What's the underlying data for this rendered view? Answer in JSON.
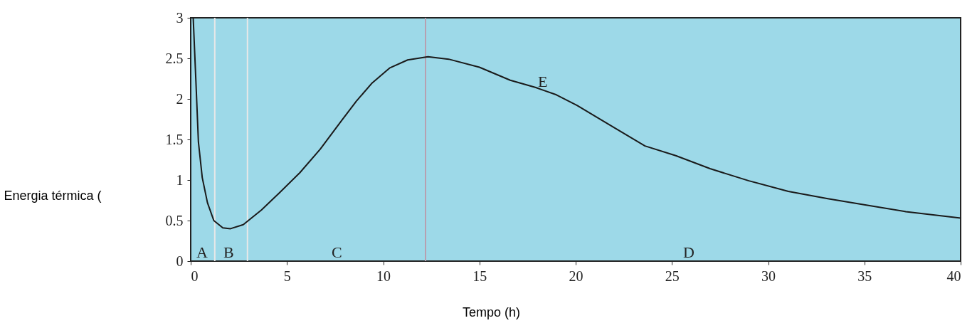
{
  "chart_data": {
    "type": "line",
    "xlabel": "Tempo (h)",
    "ylabel": "Energia térmica (",
    "xlim": [
      0,
      40
    ],
    "xticks": [
      0,
      5,
      10,
      15,
      20,
      25,
      30,
      35,
      40
    ],
    "ylim": [
      0,
      3
    ],
    "yticks": [
      0,
      0.5,
      1,
      1.5,
      2,
      2.5,
      3
    ],
    "grid": false,
    "marker": "none",
    "line_style": "solid",
    "series": [
      {
        "color": "#1a1a1a",
        "x": [
          0.13,
          0.27,
          0.4,
          0.6,
          0.87,
          1.2,
          1.67,
          2.07,
          2.73,
          3.67,
          4.6,
          5.67,
          6.73,
          7.8,
          8.6,
          9.4,
          10.33,
          11.27,
          12.33,
          13.4,
          15,
          16.6,
          17.93,
          19,
          20.07,
          21.97,
          23.6,
          25.2,
          26.98,
          29.0,
          31.05,
          33.1,
          35.1,
          37.15,
          40
        ],
        "values": [
          3,
          2.22,
          1.47,
          1.03,
          0.72,
          0.5,
          0.41,
          0.4,
          0.45,
          0.63,
          0.84,
          1.09,
          1.38,
          1.72,
          1.97,
          2.19,
          2.38,
          2.48,
          2.52,
          2.49,
          2.39,
          2.23,
          2.14,
          2.05,
          1.92,
          1.65,
          1.42,
          1.3,
          1.14,
          0.99,
          0.86,
          0.77,
          0.69,
          0.61,
          0.53
        ]
      }
    ],
    "ref_lines": [
      {
        "axis": "x",
        "value": 1.25,
        "color": "#e8e8e8"
      },
      {
        "axis": "x",
        "value": 2.95,
        "color": "#e8e8e8"
      },
      {
        "axis": "x",
        "value": 12.2,
        "color": "#b8a0b0"
      }
    ],
    "annotations": [
      "A",
      "B",
      "C",
      "D",
      "E"
    ]
  }
}
